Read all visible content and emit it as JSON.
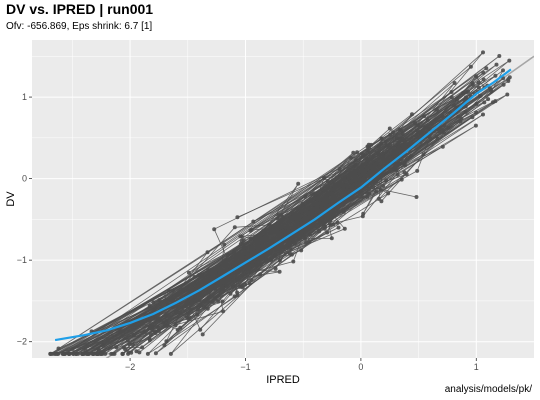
{
  "header": {
    "title": "DV vs. IPRED | run001",
    "subtitle": "Ofv: -656.869, Eps shrink: 6.7 [1]"
  },
  "caption": "analysis/models/pk/",
  "colors": {
    "panel": "#ebebeb",
    "grid_major": "#ffffff",
    "points": "#4d4d4d",
    "lines": "#4d4d4d",
    "identity_line": "#a6a6a6",
    "smooth": "#1f9fe8"
  },
  "chart_data": {
    "type": "scatter",
    "xlabel": "IPRED",
    "ylabel": "DV",
    "xlim": [
      -2.85,
      1.5
    ],
    "ylim": [
      -2.2,
      1.7
    ],
    "xticks": [
      -2,
      -1,
      0,
      1
    ],
    "yticks": [
      -2,
      -1,
      0,
      1
    ],
    "grid": true,
    "identity_line": true,
    "subjects_connected": true,
    "n_subjects": 60,
    "points_per_subject": 13,
    "ipred_range": [
      -2.7,
      1.3
    ],
    "smooth": {
      "x": [
        -2.65,
        -2.4,
        -2.2,
        -2.0,
        -1.8,
        -1.6,
        -1.4,
        -1.2,
        -1.0,
        -0.8,
        -0.6,
        -0.4,
        -0.2,
        0.0,
        0.2,
        0.4,
        0.6,
        0.8,
        1.0,
        1.15,
        1.3
      ],
      "y": [
        -1.98,
        -1.92,
        -1.86,
        -1.77,
        -1.66,
        -1.52,
        -1.37,
        -1.2,
        -1.03,
        -0.86,
        -0.68,
        -0.5,
        -0.3,
        -0.11,
        0.12,
        0.34,
        0.57,
        0.8,
        1.04,
        1.18,
        1.34
      ]
    }
  }
}
